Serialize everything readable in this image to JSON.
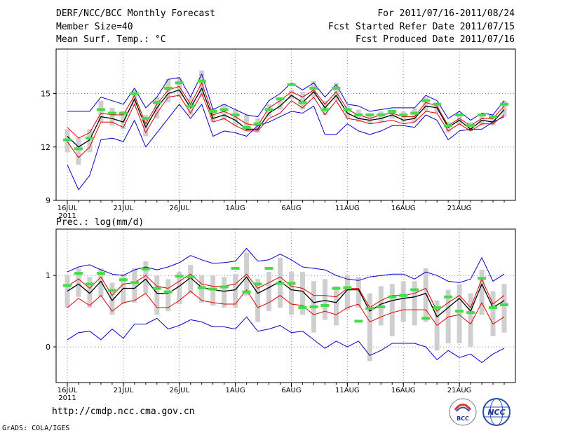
{
  "header": {
    "title": "DERF/NCC/BCC Monthly Forecast",
    "member_size": "Member Size=40",
    "variable": "Mean Surf. Temp.: °C",
    "period": "For 2011/07/16-2011/08/24",
    "started": "Fcst Started Refer Date 2011/07/15",
    "produced": "Fcst Produced Date 2011/07/16"
  },
  "footer": {
    "url": "http://cmdp.ncc.cma.gov.cn",
    "grads": "GrADS: COLA/IGES",
    "logo_bcc": "BCC",
    "logo_ncc": "NCC"
  },
  "colors": {
    "range": "#0000cc",
    "std": "#dd0000",
    "mean": "#000000",
    "box": "#cfcfcf",
    "obs": "#44dd44",
    "grid": "#888888"
  },
  "chart_data": [
    {
      "type": "line",
      "title": "",
      "ylabel": "",
      "ylim": [
        9,
        17.5
      ],
      "yticks": [
        9,
        12,
        15
      ],
      "x_day_range": [
        1,
        40
      ],
      "xtick_days": [
        1,
        6,
        11,
        16,
        21,
        26,
        31,
        36
      ],
      "xtick_labels": [
        "16JUL",
        "21JUL",
        "26JUL",
        "1AUG",
        "6AUG",
        "11AUG",
        "16AUG",
        "21AUG"
      ],
      "year_label": "2011",
      "series": [
        {
          "name": "max",
          "values": [
            14.0,
            14.0,
            14.0,
            14.8,
            14.6,
            14.4,
            15.3,
            14.2,
            14.8,
            15.8,
            15.9,
            14.8,
            16.1,
            14.1,
            14.4,
            14.1,
            13.8,
            13.7,
            14.6,
            15.0,
            15.6,
            15.2,
            15.6,
            14.8,
            15.5,
            14.4,
            14.3,
            14.0,
            14.1,
            14.2,
            14.2,
            14.2,
            14.9,
            14.6,
            13.6,
            14.0,
            13.5,
            13.9,
            13.8,
            14.6
          ]
        },
        {
          "name": "upper",
          "values": [
            13.1,
            12.5,
            12.8,
            13.9,
            13.8,
            13.8,
            14.9,
            13.3,
            14.4,
            15.2,
            15.4,
            14.4,
            15.6,
            13.8,
            14.0,
            13.7,
            13.3,
            13.2,
            14.2,
            14.6,
            15.1,
            14.8,
            15.2,
            14.4,
            15.1,
            14.1,
            13.8,
            13.6,
            13.8,
            13.9,
            13.7,
            13.7,
            14.5,
            14.3,
            13.2,
            13.6,
            13.2,
            13.6,
            13.6,
            14.3
          ]
        },
        {
          "name": "mean",
          "values": [
            12.6,
            12.0,
            12.4,
            13.7,
            13.6,
            13.4,
            14.7,
            13.1,
            14.2,
            15.0,
            15.2,
            14.2,
            15.3,
            13.6,
            13.8,
            13.5,
            13.0,
            13.0,
            13.9,
            14.3,
            14.9,
            14.5,
            15.1,
            14.2,
            14.9,
            13.9,
            13.6,
            13.5,
            13.6,
            13.8,
            13.5,
            13.6,
            14.3,
            14.2,
            13.1,
            13.5,
            13.0,
            13.5,
            13.4,
            14.1
          ]
        },
        {
          "name": "lower",
          "values": [
            12.3,
            11.4,
            12.0,
            13.4,
            13.4,
            13.1,
            14.4,
            12.8,
            13.9,
            14.8,
            14.9,
            13.9,
            15.0,
            13.4,
            13.6,
            13.2,
            12.9,
            12.9,
            13.6,
            13.9,
            14.6,
            14.2,
            14.8,
            13.8,
            14.6,
            13.6,
            13.5,
            13.3,
            13.4,
            13.5,
            13.3,
            13.4,
            14.0,
            13.9,
            12.9,
            13.3,
            12.9,
            13.3,
            13.3,
            13.8
          ]
        },
        {
          "name": "min",
          "values": [
            11.0,
            9.6,
            10.4,
            12.4,
            12.5,
            12.3,
            13.5,
            12.0,
            12.8,
            13.6,
            14.4,
            13.6,
            14.4,
            12.6,
            12.9,
            12.8,
            12.6,
            13.2,
            13.4,
            13.7,
            14.0,
            13.9,
            14.3,
            12.7,
            12.7,
            13.3,
            12.9,
            12.7,
            12.9,
            13.2,
            13.2,
            13.1,
            13.8,
            13.5,
            12.4,
            12.9,
            13.0,
            13.0,
            13.4,
            13.7
          ]
        },
        {
          "name": "box_low",
          "values": [
            11.7,
            11.0,
            11.7,
            13.4,
            13.2,
            13.0,
            14.3,
            12.6,
            13.6,
            14.5,
            14.8,
            13.8,
            14.8,
            13.4,
            13.5,
            13.2,
            12.9,
            12.8,
            13.7,
            14.1,
            14.7,
            14.1,
            14.8,
            13.8,
            14.6,
            13.6,
            13.4,
            13.3,
            13.4,
            13.6,
            13.4,
            13.4,
            14.0,
            13.9,
            12.8,
            13.2,
            12.9,
            13.2,
            13.2,
            13.7
          ]
        },
        {
          "name": "box_high",
          "values": [
            13.0,
            12.5,
            13.0,
            14.6,
            14.2,
            14.0,
            15.2,
            13.8,
            14.8,
            15.8,
            15.9,
            14.8,
            16.3,
            14.2,
            14.4,
            14.1,
            13.8,
            13.6,
            14.4,
            14.8,
            15.2,
            15.1,
            15.7,
            14.6,
            15.6,
            14.3,
            14.1,
            13.9,
            14.0,
            14.1,
            14.0,
            14.2,
            14.8,
            14.5,
            13.4,
            13.9,
            13.4,
            13.8,
            13.7,
            14.6
          ]
        },
        {
          "name": "observed",
          "values": [
            12.4,
            11.9,
            12.5,
            14.1,
            13.9,
            13.9,
            15.0,
            13.6,
            14.5,
            15.3,
            15.6,
            14.3,
            15.7,
            14.0,
            14.1,
            13.8,
            13.1,
            13.3,
            14.1,
            14.7,
            15.5,
            14.5,
            15.3,
            14.1,
            15.3,
            14.1,
            13.8,
            13.8,
            13.8,
            14.0,
            13.8,
            13.9,
            14.6,
            14.4,
            13.2,
            13.8,
            13.2,
            13.8,
            13.7,
            14.4
          ]
        }
      ]
    },
    {
      "type": "line",
      "title": "Prec.: log(mm/d)",
      "ylabel": "",
      "ylim": [
        -0.5,
        1.65
      ],
      "yticks": [
        0,
        1
      ],
      "x_day_range": [
        1,
        40
      ],
      "xtick_days": [
        1,
        6,
        11,
        16,
        21,
        26,
        31,
        36
      ],
      "xtick_labels": [
        "16JUL",
        "21JUL",
        "26JUL",
        "1AUG",
        "6AUG",
        "11AUG",
        "16AUG",
        "21AUG"
      ],
      "year_label": "2011",
      "series": [
        {
          "name": "max",
          "values": [
            1.05,
            1.12,
            1.15,
            1.08,
            1.02,
            1.0,
            1.08,
            1.12,
            1.08,
            1.12,
            1.18,
            1.28,
            1.22,
            1.17,
            1.18,
            1.2,
            1.38,
            1.2,
            1.22,
            1.3,
            1.22,
            1.12,
            1.1,
            1.08,
            1.0,
            0.95,
            0.93,
            0.98,
            1.0,
            1.02,
            1.02,
            0.95,
            1.05,
            1.0,
            0.92,
            0.9,
            0.95,
            1.25,
            0.92,
            1.02
          ]
        },
        {
          "name": "upper",
          "values": [
            0.85,
            0.95,
            0.82,
            0.98,
            0.72,
            0.88,
            0.9,
            1.0,
            0.85,
            0.82,
            0.92,
            1.02,
            0.88,
            0.85,
            0.85,
            0.88,
            1.02,
            0.82,
            0.9,
            0.98,
            0.85,
            0.82,
            0.72,
            0.72,
            0.7,
            0.82,
            0.82,
            0.55,
            0.65,
            0.72,
            0.72,
            0.75,
            0.82,
            0.5,
            0.62,
            0.72,
            0.55,
            0.95,
            0.6,
            0.72
          ]
        },
        {
          "name": "mean",
          "values": [
            0.78,
            0.88,
            0.75,
            0.92,
            0.65,
            0.82,
            0.82,
            0.95,
            0.75,
            0.75,
            0.85,
            0.97,
            0.83,
            0.8,
            0.78,
            0.8,
            0.98,
            0.75,
            0.83,
            0.92,
            0.8,
            0.78,
            0.62,
            0.65,
            0.62,
            0.8,
            0.8,
            0.5,
            0.6,
            0.65,
            0.68,
            0.7,
            0.75,
            0.42,
            0.55,
            0.68,
            0.5,
            0.88,
            0.55,
            0.65
          ]
        },
        {
          "name": "lower",
          "values": [
            0.55,
            0.68,
            0.58,
            0.72,
            0.5,
            0.62,
            0.65,
            0.75,
            0.55,
            0.55,
            0.65,
            0.78,
            0.65,
            0.62,
            0.6,
            0.6,
            0.8,
            0.55,
            0.62,
            0.72,
            0.6,
            0.58,
            0.45,
            0.5,
            0.45,
            0.55,
            0.6,
            0.35,
            0.42,
            0.48,
            0.52,
            0.52,
            0.52,
            0.3,
            0.42,
            0.45,
            0.32,
            0.62,
            0.32,
            0.42
          ]
        },
        {
          "name": "min",
          "values": [
            0.1,
            0.2,
            0.22,
            0.1,
            0.25,
            0.12,
            0.32,
            0.32,
            0.4,
            0.25,
            0.3,
            0.38,
            0.35,
            0.28,
            0.28,
            0.25,
            0.42,
            0.22,
            0.25,
            0.3,
            0.2,
            0.22,
            0.1,
            -0.02,
            0.08,
            0.0,
            0.08,
            -0.12,
            -0.05,
            0.05,
            0.05,
            0.05,
            0.0,
            -0.18,
            -0.05,
            -0.15,
            -0.1,
            -0.22,
            -0.1,
            -0.02
          ]
        },
        {
          "name": "box_low",
          "values": [
            0.55,
            0.7,
            0.55,
            0.7,
            0.45,
            0.6,
            0.62,
            0.75,
            0.45,
            0.5,
            0.6,
            0.75,
            0.62,
            0.58,
            0.55,
            0.55,
            0.72,
            0.35,
            0.5,
            0.55,
            0.45,
            0.45,
            0.2,
            0.38,
            0.3,
            0.52,
            0.55,
            -0.2,
            0.3,
            0.15,
            0.35,
            0.3,
            0.35,
            -0.05,
            0.05,
            0.05,
            0.0,
            0.45,
            0.15,
            0.2
          ]
        },
        {
          "name": "box_high",
          "values": [
            1.0,
            1.1,
            0.98,
            1.1,
            0.9,
            1.02,
            1.1,
            1.2,
            1.0,
            0.95,
            1.05,
            1.15,
            1.0,
            1.0,
            0.98,
            1.02,
            1.32,
            0.95,
            1.05,
            1.25,
            1.05,
            1.05,
            0.92,
            0.95,
            0.85,
            1.0,
            0.98,
            0.75,
            0.85,
            0.88,
            0.92,
            0.92,
            1.1,
            0.65,
            0.8,
            0.88,
            0.75,
            1.08,
            0.78,
            0.88
          ]
        },
        {
          "name": "observed",
          "values": [
            0.86,
            1.03,
            0.88,
            1.03,
            0.79,
            0.94,
            0.9,
            1.09,
            0.82,
            0.77,
            0.99,
            0.98,
            0.83,
            0.81,
            0.84,
            1.1,
            0.77,
            0.88,
            1.1,
            0.89,
            0.89,
            0.55,
            0.56,
            0.58,
            0.82,
            0.83,
            0.36,
            0.54,
            0.56,
            0.7,
            0.72,
            0.8,
            0.4,
            0.55,
            0.7,
            0.5,
            0.48,
            0.96,
            0.55,
            0.59
          ]
        }
      ]
    }
  ]
}
